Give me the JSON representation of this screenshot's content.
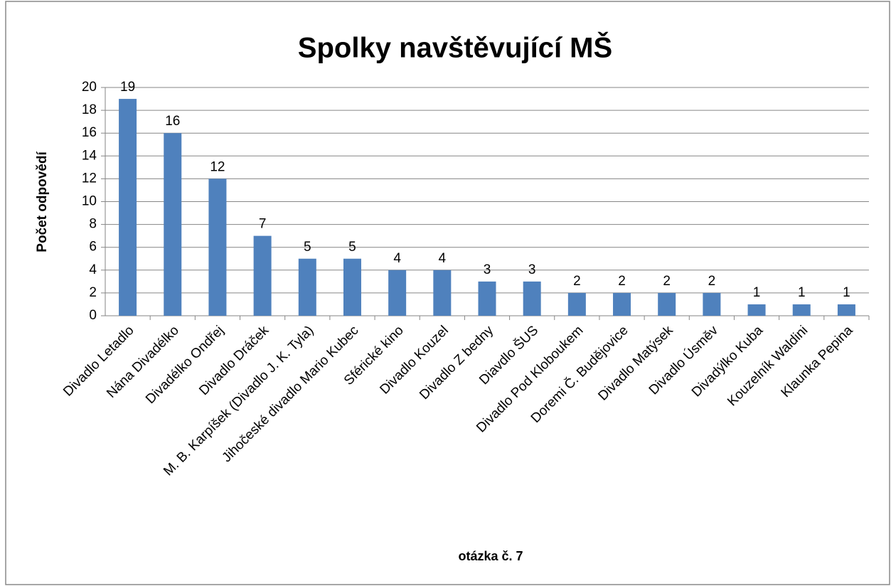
{
  "chart_data": {
    "type": "bar",
    "title": "Spolky navštěvující MŠ",
    "x_label": "otázka č. 7",
    "y_label": "Počet odpovědí",
    "categories": [
      "Divadlo Letadlo",
      "Nána Divadélko",
      "Divadélko Ondřej",
      "Divadlo Dráček",
      "M. B. Karpíšek (Divadlo J. K. Tyla)",
      "Jihočeské divadlo Mario Kubec",
      "Sférické kino",
      "Divadlo Kouzel",
      "Divadlo Z bedny",
      "Diavdlo ŠUS",
      "Divadlo Pod Kloboukem",
      "Doremi Č. Budějovice",
      "Divadlo Matýsek",
      "Divadlo Úsměv",
      "Divadýlko Kuba",
      "Kouzelník Waldini",
      "Klaunka Pepina"
    ],
    "values": [
      19,
      16,
      12,
      7,
      5,
      5,
      4,
      4,
      3,
      3,
      2,
      2,
      2,
      2,
      1,
      1,
      1
    ],
    "color": "#4f81bd",
    "ylim": [
      0,
      20
    ],
    "yticks": [
      0,
      2,
      4,
      6,
      8,
      10,
      12,
      14,
      16,
      18,
      20
    ],
    "grid": true
  }
}
